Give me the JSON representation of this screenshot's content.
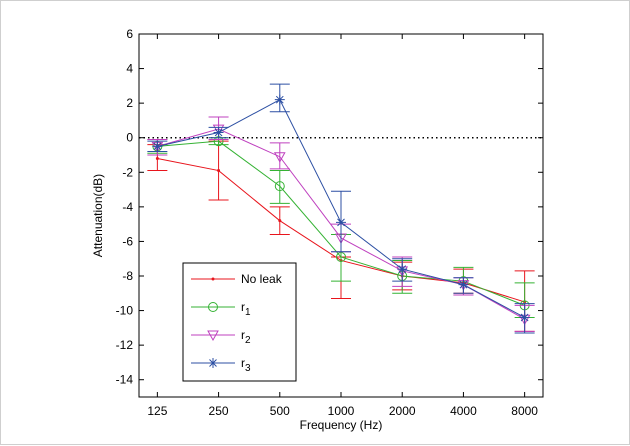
{
  "chart_data": {
    "type": "line",
    "title": "",
    "xlabel": "Frequency (Hz)",
    "ylabel": "Attenuation(dB)",
    "x_scale": "log",
    "categories": [
      "125",
      "250",
      "500",
      "1000",
      "2000",
      "4000",
      "8000"
    ],
    "x": [
      125,
      250,
      500,
      1000,
      2000,
      4000,
      8000
    ],
    "ylim": [
      -15,
      6
    ],
    "y_ticks": [
      6,
      4,
      2,
      0,
      -2,
      -4,
      -6,
      -8,
      -10,
      -12,
      -14
    ],
    "grid": false,
    "legend_position": "lower-left",
    "reference_line": {
      "y": 0,
      "style": "dotted",
      "color": "#000000"
    },
    "series": [
      {
        "name": "No leak",
        "color": "#e8141c",
        "marker": "point",
        "values": [
          -1.2,
          -1.9,
          -4.8,
          -7.1,
          -8.0,
          -8.4,
          -9.5
        ],
        "err_low": [
          -1.9,
          -3.6,
          -5.6,
          -9.3,
          -8.8,
          -9.0,
          -11.2
        ],
        "err_high": [
          -0.4,
          -0.2,
          -4.0,
          -6.9,
          -7.2,
          -7.6,
          -7.7
        ]
      },
      {
        "name": "r1",
        "label_base": "r",
        "label_sub": "1",
        "color": "#34b233",
        "marker": "circle",
        "values": [
          -0.5,
          -0.2,
          -2.8,
          -6.9,
          -8.0,
          -8.3,
          -9.7
        ],
        "err_low": [
          -0.9,
          -0.4,
          -3.8,
          -8.3,
          -9.0,
          -9.1,
          -10.4
        ],
        "err_high": [
          -0.1,
          0.0,
          -1.9,
          -5.6,
          -7.1,
          -7.5,
          -8.4
        ]
      },
      {
        "name": "r2",
        "label_base": "r",
        "label_sub": "2",
        "color": "#bf40bf",
        "marker": "triangle-down",
        "values": [
          -0.5,
          0.5,
          -1.1,
          -5.8,
          -7.7,
          -8.5,
          -10.5
        ],
        "err_low": [
          -1.0,
          -0.1,
          -1.8,
          -6.6,
          -8.6,
          -9.1,
          -11.2
        ],
        "err_high": [
          -0.1,
          1.2,
          -0.3,
          -5.0,
          -6.9,
          -8.1,
          -9.7
        ]
      },
      {
        "name": "r3",
        "label_base": "r",
        "label_sub": "3",
        "color": "#2c4fa3",
        "marker": "asterisk",
        "values": [
          -0.5,
          0.3,
          2.2,
          -4.9,
          -7.6,
          -8.5,
          -10.4
        ],
        "err_low": [
          -0.8,
          0.0,
          1.5,
          -6.6,
          -8.3,
          -9.0,
          -11.3
        ],
        "err_high": [
          -0.2,
          0.6,
          3.1,
          -3.1,
          -7.0,
          -8.1,
          -9.6
        ]
      }
    ]
  }
}
